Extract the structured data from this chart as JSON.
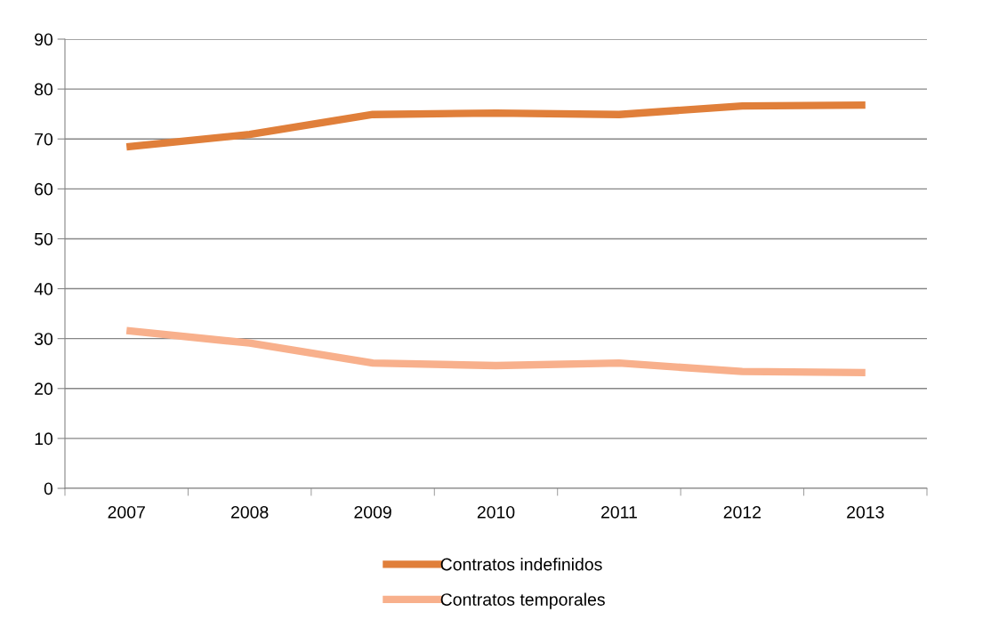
{
  "chart_data": {
    "type": "line",
    "categories": [
      "2007",
      "2008",
      "2009",
      "2010",
      "2011",
      "2012",
      "2013"
    ],
    "series": [
      {
        "name": "Contratos indefinidos",
        "color": "#e07f3a",
        "values": [
          68.4,
          70.9,
          74.9,
          75.2,
          74.9,
          76.6,
          76.8
        ]
      },
      {
        "name": "Contratos temporales",
        "color": "#f8b08c",
        "values": [
          31.6,
          29.1,
          25.1,
          24.6,
          25.1,
          23.4,
          23.2
        ]
      }
    ],
    "ylim": [
      0,
      90
    ],
    "yticks": [
      0,
      10,
      20,
      30,
      40,
      50,
      60,
      70,
      80,
      90
    ],
    "grid": "y",
    "legend": "bottom",
    "marker": "none",
    "line_style": "solid"
  }
}
